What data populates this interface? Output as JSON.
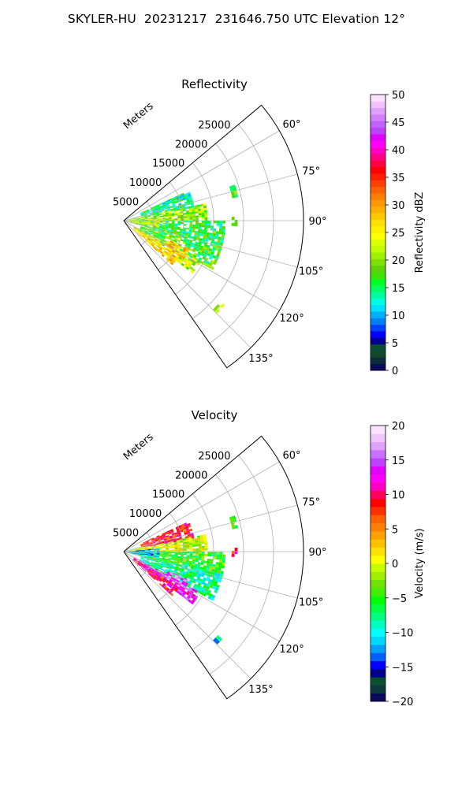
{
  "figure": {
    "title": "SKYLER-HU  20231217  231646.750 UTC Elevation 12°"
  },
  "chart_data": [
    {
      "type": "heatmap",
      "subtype": "polar-sector",
      "title": "Reflectivity",
      "range_axis_label": "Meters",
      "range_ticks": [
        5000,
        10000,
        15000,
        20000,
        25000
      ],
      "range_tick_labels": [
        "5000",
        "10000",
        "15000",
        "20000",
        "25000"
      ],
      "range_max": 30000,
      "azimuth_range_deg": [
        50,
        145
      ],
      "azimuth_ticks": [
        60,
        75,
        90,
        105,
        120,
        135
      ],
      "azimuth_tick_labels": [
        "60°",
        "75°",
        "90°",
        "105°",
        "120°",
        "135°"
      ],
      "grid": true,
      "colorbar": {
        "label": "Reflectivity dBZ",
        "min": 0,
        "max": 50,
        "ticks": [
          0,
          5,
          10,
          15,
          20,
          25,
          30,
          35,
          40,
          45,
          50
        ],
        "tick_labels": [
          "0",
          "5",
          "10",
          "15",
          "20",
          "25",
          "30",
          "35",
          "40",
          "45",
          "50"
        ],
        "colors": [
          "#0a0a5a",
          "#0b2a3a",
          "#0f4a28",
          "#0a5030",
          "#00008c",
          "#0000ff",
          "#0040ff",
          "#0080ff",
          "#00b0ff",
          "#00e0ff",
          "#00ffe0",
          "#00ffa0",
          "#00ff60",
          "#00ff20",
          "#40e000",
          "#60d000",
          "#80e000",
          "#a0f000",
          "#c0ff00",
          "#e0ff00",
          "#ffff00",
          "#fff000",
          "#ffe000",
          "#ffc800",
          "#ffb000",
          "#ff9800",
          "#ff8000",
          "#ff6000",
          "#ff4000",
          "#ff2000",
          "#ff0000",
          "#ff0040",
          "#ff0080",
          "#ff00c0",
          "#ff00ff",
          "#e000ff",
          "#c040ff",
          "#c060ff",
          "#d080ff",
          "#e0a0ff",
          "#f0c0ff",
          "#f8e0ff"
        ]
      },
      "echo_regions": [
        {
          "az": [
            65,
            78
          ],
          "r": [
            3000,
            12000
          ],
          "value": 14
        },
        {
          "az": [
            78,
            90
          ],
          "r": [
            1000,
            14000
          ],
          "value": 20
        },
        {
          "az": [
            90,
            103
          ],
          "r": [
            1000,
            17000
          ],
          "value": 16
        },
        {
          "az": [
            103,
            118
          ],
          "r": [
            3000,
            17000
          ],
          "value": 17
        },
        {
          "az": [
            118,
            126
          ],
          "r": [
            2000,
            14500
          ],
          "value": 22
        },
        {
          "az": [
            123,
            131
          ],
          "r": [
            2000,
            11000
          ],
          "value": 27
        },
        {
          "az": [
            113,
            122
          ],
          "r": [
            8000,
            12000
          ],
          "value": 28
        },
        {
          "az": [
            85,
            100
          ],
          "r": [
            0,
            6000
          ],
          "value": 23
        },
        {
          "az": [
            72,
            78
          ],
          "r": [
            18500,
            19500
          ],
          "value": 18
        },
        {
          "az": [
            88,
            92
          ],
          "r": [
            18000,
            18600
          ],
          "value": 20
        },
        {
          "az": [
            130,
            134
          ],
          "r": [
            21000,
            22000
          ],
          "value": 19
        }
      ]
    },
    {
      "type": "heatmap",
      "subtype": "polar-sector",
      "title": "Velocity",
      "range_axis_label": "Meters",
      "range_ticks": [
        5000,
        10000,
        15000,
        20000,
        25000
      ],
      "range_tick_labels": [
        "5000",
        "10000",
        "15000",
        "20000",
        "25000"
      ],
      "range_max": 30000,
      "azimuth_range_deg": [
        50,
        145
      ],
      "azimuth_ticks": [
        60,
        75,
        90,
        105,
        120,
        135
      ],
      "azimuth_tick_labels": [
        "60°",
        "75°",
        "90°",
        "105°",
        "120°",
        "135°"
      ],
      "grid": true,
      "colorbar": {
        "label": "Velocity (m/s)",
        "min": -20,
        "max": 20,
        "ticks": [
          -20,
          -15,
          -10,
          -5,
          0,
          5,
          10,
          15,
          20
        ],
        "tick_labels": [
          "−20",
          "−15",
          "−10",
          "−5",
          "0",
          "5",
          "10",
          "15",
          "20"
        ],
        "colors": [
          "#0a0a5a",
          "#0b3a3a",
          "#0a5030",
          "#00008c",
          "#0000ff",
          "#0060ff",
          "#00a0ff",
          "#00d8ff",
          "#00ffff",
          "#00ffc0",
          "#00ff80",
          "#00ff40",
          "#00ff00",
          "#40f000",
          "#70e000",
          "#a0f000",
          "#c8ff00",
          "#ffff00",
          "#ffe000",
          "#ffc000",
          "#ffa000",
          "#ff8000",
          "#ff6000",
          "#ff3000",
          "#ff0000",
          "#ff0060",
          "#ff00c0",
          "#ff00ff",
          "#e000ff",
          "#c040ff",
          "#c870ff",
          "#e0a0ff",
          "#f0c8ff",
          "#f8e4ff"
        ]
      },
      "echo_regions": [
        {
          "az": [
            65,
            78
          ],
          "r": [
            3000,
            12000
          ],
          "value": 8
        },
        {
          "az": [
            78,
            90
          ],
          "r": [
            1000,
            14000
          ],
          "value": 0
        },
        {
          "az": [
            90,
            103
          ],
          "r": [
            1000,
            17000
          ],
          "value": -5
        },
        {
          "az": [
            103,
            118
          ],
          "r": [
            3000,
            17000
          ],
          "value": -8
        },
        {
          "az": [
            118,
            126
          ],
          "r": [
            2000,
            14500
          ],
          "value": 13
        },
        {
          "az": [
            123,
            131
          ],
          "r": [
            2000,
            11000
          ],
          "value": 10
        },
        {
          "az": [
            113,
            122
          ],
          "r": [
            8000,
            12000
          ],
          "value": 15
        },
        {
          "az": [
            85,
            100
          ],
          "r": [
            0,
            6000
          ],
          "value": -12
        },
        {
          "az": [
            72,
            78
          ],
          "r": [
            18500,
            19500
          ],
          "value": -4
        },
        {
          "az": [
            88,
            92
          ],
          "r": [
            18000,
            18600
          ],
          "value": 10
        },
        {
          "az": [
            130,
            134
          ],
          "r": [
            21000,
            22000
          ],
          "value": -10
        }
      ]
    }
  ]
}
